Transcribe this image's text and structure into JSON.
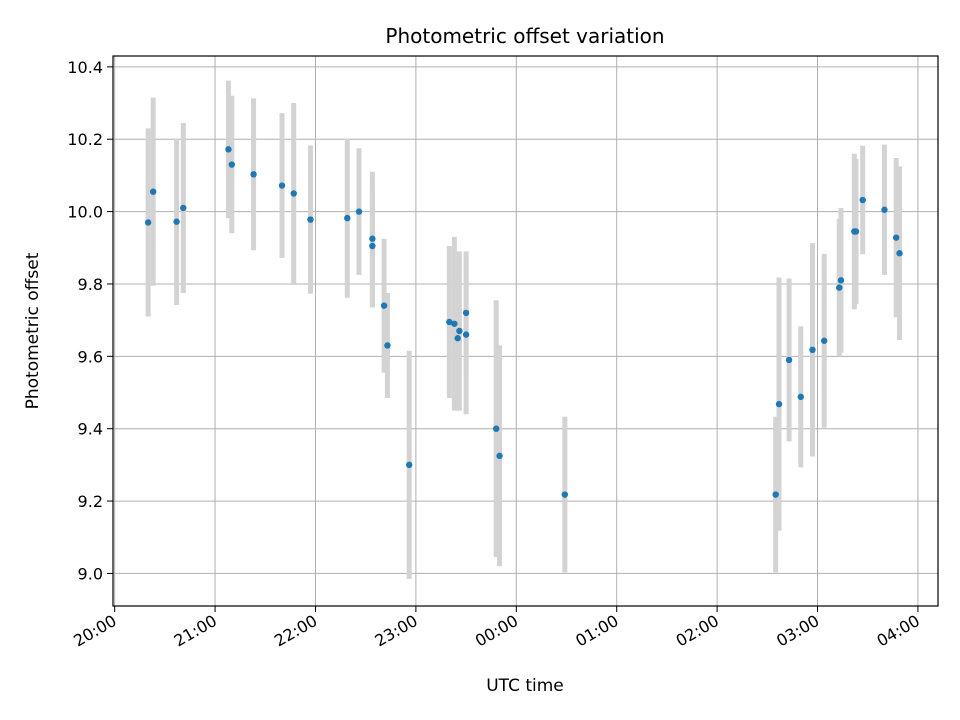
{
  "chart_data": {
    "type": "scatter",
    "title": "Photometric offset variation",
    "xlabel": "UTC time",
    "ylabel": "Photometric offset",
    "x_unit": "hours after 00:00 UTC of the first day",
    "xlim": [
      "19:59",
      "04:12"
    ],
    "ylim": [
      8.91,
      10.43
    ],
    "grid": true,
    "x_ticks": [
      "20:00",
      "21:00",
      "22:00",
      "23:00",
      "00:00",
      "01:00",
      "02:00",
      "03:00",
      "04:00"
    ],
    "y_ticks": [
      "9.0",
      "9.2",
      "9.4",
      "9.6",
      "9.8",
      "10.0",
      "10.2",
      "10.4"
    ],
    "point_color": "#1f77b4",
    "errorbar_color": "#d3d3d3",
    "points": [
      {
        "t": "20:20",
        "y": 9.97,
        "err": 0.26
      },
      {
        "t": "20:23",
        "y": 10.055,
        "err": 0.26
      },
      {
        "t": "20:37",
        "y": 9.972,
        "err": 0.23
      },
      {
        "t": "20:41",
        "y": 10.01,
        "err": 0.235
      },
      {
        "t": "21:08",
        "y": 10.172,
        "err": 0.19
      },
      {
        "t": "21:10",
        "y": 10.13,
        "err": 0.19
      },
      {
        "t": "21:23",
        "y": 10.103,
        "err": 0.21
      },
      {
        "t": "21:40",
        "y": 10.072,
        "err": 0.2
      },
      {
        "t": "21:47",
        "y": 10.05,
        "err": 0.25
      },
      {
        "t": "21:57",
        "y": 9.978,
        "err": 0.205
      },
      {
        "t": "22:19",
        "y": 9.982,
        "err": 0.22
      },
      {
        "t": "22:26",
        "y": 10.0,
        "err": 0.175
      },
      {
        "t": "22:34",
        "y": 9.925,
        "err": 0.185
      },
      {
        "t": "22:34",
        "y": 9.905,
        "err": 0.17
      },
      {
        "t": "22:41",
        "y": 9.74,
        "err": 0.185
      },
      {
        "t": "22:43",
        "y": 9.63,
        "err": 0.145
      },
      {
        "t": "22:56",
        "y": 9.3,
        "err": 0.315
      },
      {
        "t": "23:20",
        "y": 9.695,
        "err": 0.21
      },
      {
        "t": "23:23",
        "y": 9.69,
        "err": 0.24
      },
      {
        "t": "23:25",
        "y": 9.65,
        "err": 0.2
      },
      {
        "t": "23:26",
        "y": 9.67,
        "err": 0.22
      },
      {
        "t": "23:30",
        "y": 9.72,
        "err": 0.17
      },
      {
        "t": "23:30",
        "y": 9.66,
        "err": 0.22
      },
      {
        "t": "23:48",
        "y": 9.4,
        "err": 0.355
      },
      {
        "t": "23:50",
        "y": 9.325,
        "err": 0.305
      },
      {
        "t": "00:29",
        "y": 9.218,
        "err": 0.215
      },
      {
        "t": "02:35",
        "y": 9.218,
        "err": 0.215
      },
      {
        "t": "02:37",
        "y": 9.468,
        "err": 0.35
      },
      {
        "t": "02:43",
        "y": 9.59,
        "err": 0.225
      },
      {
        "t": "02:50",
        "y": 9.488,
        "err": 0.195
      },
      {
        "t": "02:57",
        "y": 9.618,
        "err": 0.295
      },
      {
        "t": "03:04",
        "y": 9.643,
        "err": 0.24
      },
      {
        "t": "03:13",
        "y": 9.79,
        "err": 0.19
      },
      {
        "t": "03:14",
        "y": 9.81,
        "err": 0.2
      },
      {
        "t": "03:22",
        "y": 9.945,
        "err": 0.215
      },
      {
        "t": "03:23",
        "y": 9.945,
        "err": 0.2
      },
      {
        "t": "03:27",
        "y": 10.032,
        "err": 0.15
      },
      {
        "t": "03:40",
        "y": 10.005,
        "err": 0.18
      },
      {
        "t": "03:47",
        "y": 9.928,
        "err": 0.22
      },
      {
        "t": "03:49",
        "y": 9.885,
        "err": 0.24
      }
    ]
  }
}
